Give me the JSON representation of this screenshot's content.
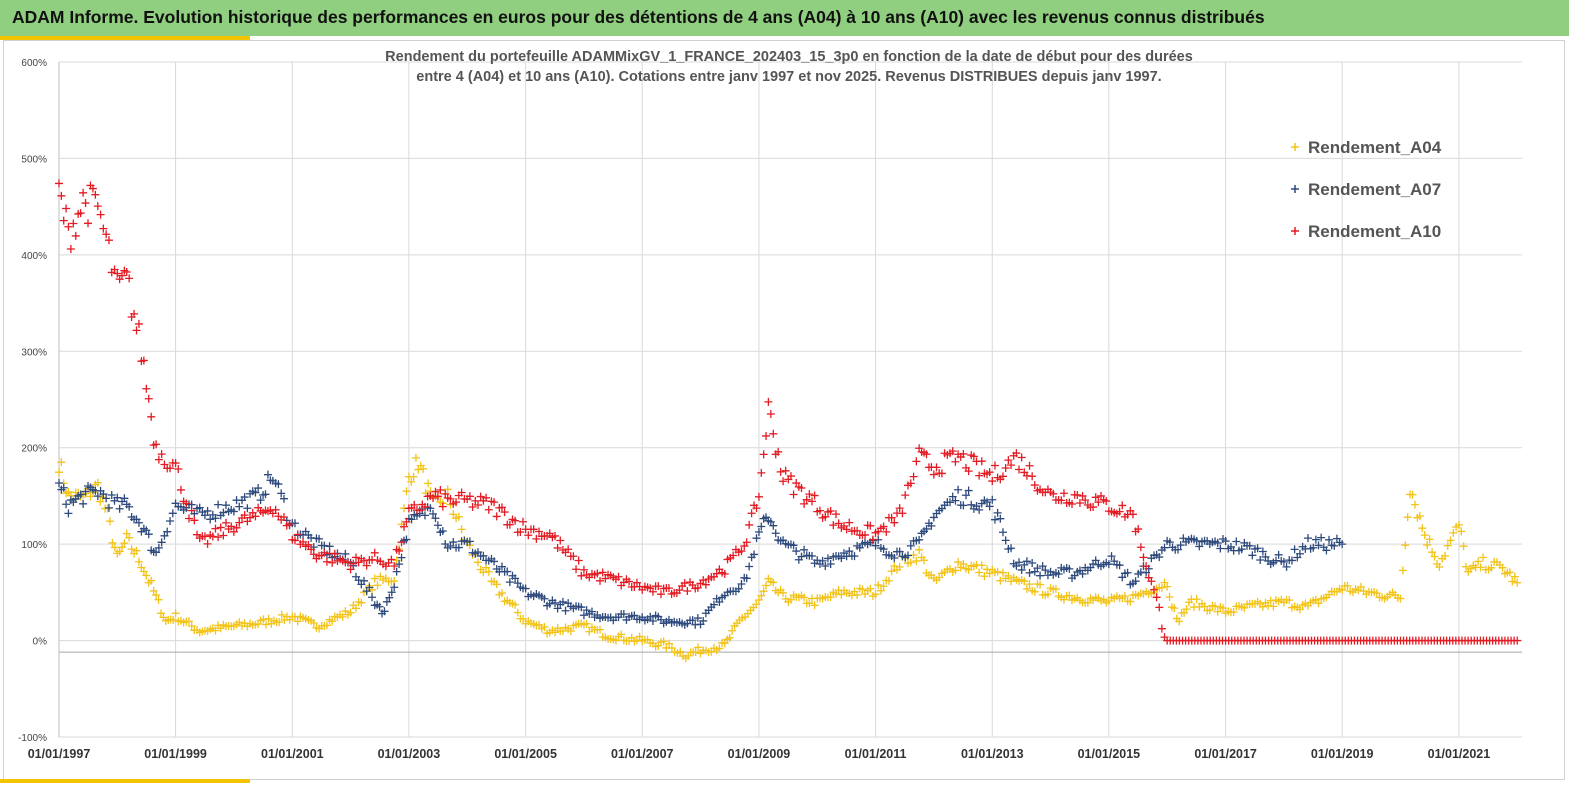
{
  "header": {
    "title": "ADAM Informe. Evolution historique des performances en euros pour des détentions de 4 ans (A04) à 10 ans (A10) avec les revenus connus distribués"
  },
  "colors": {
    "header_bg": "#8fcf7f",
    "accent": "#f3c400",
    "A04": "#f2c318",
    "A07": "#2e4a7d",
    "A10": "#e41b23"
  },
  "chart_data": {
    "type": "scatter",
    "title_line1": "Rendement du portefeuille ADAMMixGV_1_FRANCE_202403_15_3p0  en fonction de la date de début pour des durées",
    "title_line2": "entre 4 (A04)  et 10 ans (A10). Cotations  entre janv 1997 et nov  2025. Revenus DISTRIBUES depuis janv 1997.",
    "x_type": "date",
    "xlim": [
      "1997-01-01",
      "2022-01-31"
    ],
    "ylim": [
      -100,
      600
    ],
    "y_ticks": [
      "600%",
      "500%",
      "400%",
      "300%",
      "200%",
      "100%",
      "0%",
      "-100%"
    ],
    "y_tick_values": [
      600,
      500,
      400,
      300,
      200,
      100,
      0,
      -100
    ],
    "x_ticks": [
      "01/01/1997",
      "01/01/1999",
      "01/01/2001",
      "01/01/2003",
      "01/01/2005",
      "01/01/2007",
      "01/01/2009",
      "01/01/2011",
      "01/01/2013",
      "01/01/2015",
      "01/01/2017",
      "01/01/2019",
      "01/01/2021"
    ],
    "grid": true,
    "legend_position": "top-right",
    "marker": "+",
    "series": [
      {
        "name": "Rendement_A04",
        "key": "A04",
        "points": [
          [
            "1997-01-01",
            185
          ],
          [
            "1997-03-01",
            150
          ],
          [
            "1997-06-01",
            148
          ],
          [
            "1997-09-01",
            160
          ],
          [
            "1997-11-01",
            130
          ],
          [
            "1998-01-01",
            85
          ],
          [
            "1998-03-01",
            105
          ],
          [
            "1998-06-01",
            80
          ],
          [
            "1998-09-01",
            45
          ],
          [
            "1998-11-01",
            20
          ],
          [
            "1999-01-01",
            25
          ],
          [
            "1999-06-01",
            10
          ],
          [
            "2000-01-01",
            15
          ],
          [
            "2000-06-01",
            18
          ],
          [
            "2001-01-01",
            25
          ],
          [
            "2001-06-01",
            15
          ],
          [
            "2002-01-01",
            30
          ],
          [
            "2002-06-01",
            60
          ],
          [
            "2002-10-01",
            65
          ],
          [
            "2003-01-01",
            170
          ],
          [
            "2003-03-01",
            185
          ],
          [
            "2003-06-01",
            140
          ],
          [
            "2003-09-01",
            150
          ],
          [
            "2004-01-01",
            100
          ],
          [
            "2004-06-01",
            60
          ],
          [
            "2005-01-01",
            20
          ],
          [
            "2005-06-01",
            10
          ],
          [
            "2006-01-01",
            15
          ],
          [
            "2006-06-01",
            5
          ],
          [
            "2007-01-01",
            0
          ],
          [
            "2007-06-01",
            -5
          ],
          [
            "2007-10-01",
            -15
          ],
          [
            "2008-01-01",
            -10
          ],
          [
            "2008-06-01",
            -5
          ],
          [
            "2008-09-01",
            20
          ],
          [
            "2009-01-01",
            40
          ],
          [
            "2009-03-01",
            60
          ],
          [
            "2009-06-01",
            45
          ],
          [
            "2010-01-01",
            40
          ],
          [
            "2010-06-01",
            50
          ],
          [
            "2011-01-01",
            50
          ],
          [
            "2011-06-01",
            80
          ],
          [
            "2011-10-01",
            90
          ],
          [
            "2012-01-01",
            60
          ],
          [
            "2012-06-01",
            80
          ],
          [
            "2013-01-01",
            70
          ],
          [
            "2013-06-01",
            60
          ],
          [
            "2014-01-01",
            50
          ],
          [
            "2014-06-01",
            45
          ],
          [
            "2015-01-01",
            40
          ],
          [
            "2015-06-01",
            45
          ],
          [
            "2016-01-01",
            60
          ],
          [
            "2016-03-01",
            20
          ],
          [
            "2016-06-01",
            40
          ],
          [
            "2017-01-01",
            30
          ],
          [
            "2017-06-01",
            35
          ],
          [
            "2018-01-01",
            40
          ],
          [
            "2018-06-01",
            35
          ],
          [
            "2019-01-01",
            55
          ],
          [
            "2019-06-01",
            50
          ],
          [
            "2020-01-01",
            45
          ],
          [
            "2020-03-01",
            160
          ],
          [
            "2020-06-01",
            110
          ],
          [
            "2020-09-01",
            80
          ],
          [
            "2021-01-01",
            120
          ],
          [
            "2021-03-01",
            70
          ],
          [
            "2021-06-01",
            80
          ],
          [
            "2021-10-01",
            75
          ],
          [
            "2022-01-01",
            60
          ]
        ]
      },
      {
        "name": "Rendement_A07",
        "key": "A07",
        "points": [
          [
            "1997-01-01",
            160
          ],
          [
            "1997-03-01",
            140
          ],
          [
            "1997-06-01",
            150
          ],
          [
            "1997-09-01",
            155
          ],
          [
            "1998-01-01",
            140
          ],
          [
            "1998-03-01",
            140
          ],
          [
            "1998-06-01",
            120
          ],
          [
            "1998-09-01",
            90
          ],
          [
            "1999-01-01",
            140
          ],
          [
            "1999-06-01",
            130
          ],
          [
            "2000-01-01",
            140
          ],
          [
            "2000-06-01",
            150
          ],
          [
            "2000-09-01",
            170
          ],
          [
            "2001-01-01",
            120
          ],
          [
            "2001-06-01",
            100
          ],
          [
            "2002-01-01",
            80
          ],
          [
            "2002-06-01",
            40
          ],
          [
            "2002-08-01",
            30
          ],
          [
            "2002-10-01",
            60
          ],
          [
            "2003-01-01",
            120
          ],
          [
            "2003-06-01",
            140
          ],
          [
            "2003-09-01",
            100
          ],
          [
            "2004-01-01",
            100
          ],
          [
            "2004-06-01",
            80
          ],
          [
            "2005-01-01",
            50
          ],
          [
            "2005-06-01",
            40
          ],
          [
            "2006-01-01",
            30
          ],
          [
            "2006-06-01",
            25
          ],
          [
            "2007-01-01",
            25
          ],
          [
            "2007-06-01",
            20
          ],
          [
            "2008-01-01",
            20
          ],
          [
            "2008-06-01",
            50
          ],
          [
            "2008-10-01",
            60
          ],
          [
            "2009-01-01",
            110
          ],
          [
            "2009-03-01",
            130
          ],
          [
            "2009-06-01",
            100
          ],
          [
            "2010-01-01",
            80
          ],
          [
            "2010-06-01",
            90
          ],
          [
            "2011-01-01",
            100
          ],
          [
            "2011-06-01",
            90
          ],
          [
            "2011-10-01",
            100
          ],
          [
            "2012-01-01",
            130
          ],
          [
            "2012-06-01",
            150
          ],
          [
            "2013-01-01",
            140
          ],
          [
            "2013-06-01",
            80
          ],
          [
            "2014-01-01",
            70
          ],
          [
            "2014-06-01",
            70
          ],
          [
            "2015-01-01",
            85
          ],
          [
            "2015-06-01",
            60
          ],
          [
            "2016-01-01",
            100
          ],
          [
            "2016-06-01",
            100
          ],
          [
            "2017-01-01",
            100
          ],
          [
            "2017-06-01",
            95
          ],
          [
            "2018-01-01",
            80
          ],
          [
            "2018-06-01",
            100
          ],
          [
            "2019-01-01",
            100
          ]
        ]
      },
      {
        "name": "Rendement_A10",
        "key": "A10",
        "points": [
          [
            "1997-01-01",
            465
          ],
          [
            "1997-03-01",
            420
          ],
          [
            "1997-06-01",
            455
          ],
          [
            "1997-09-01",
            450
          ],
          [
            "1998-01-01",
            365
          ],
          [
            "1998-03-01",
            375
          ],
          [
            "1998-06-01",
            300
          ],
          [
            "1998-09-01",
            200
          ],
          [
            "1999-01-01",
            180
          ],
          [
            "1999-06-01",
            100
          ],
          [
            "2000-01-01",
            120
          ],
          [
            "2000-06-01",
            130
          ],
          [
            "2000-09-01",
            140
          ],
          [
            "2001-01-01",
            110
          ],
          [
            "2001-06-01",
            90
          ],
          [
            "2002-01-01",
            80
          ],
          [
            "2002-06-01",
            85
          ],
          [
            "2002-10-01",
            80
          ],
          [
            "2003-01-01",
            130
          ],
          [
            "2003-06-01",
            150
          ],
          [
            "2003-09-01",
            145
          ],
          [
            "2004-01-01",
            145
          ],
          [
            "2004-06-01",
            140
          ],
          [
            "2005-01-01",
            115
          ],
          [
            "2005-06-01",
            110
          ],
          [
            "2006-01-01",
            70
          ],
          [
            "2006-06-01",
            65
          ],
          [
            "2007-01-01",
            55
          ],
          [
            "2007-06-01",
            50
          ],
          [
            "2008-01-01",
            60
          ],
          [
            "2008-06-01",
            75
          ],
          [
            "2008-10-01",
            100
          ],
          [
            "2009-01-01",
            150
          ],
          [
            "2009-03-01",
            240
          ],
          [
            "2009-06-01",
            170
          ],
          [
            "2010-01-01",
            140
          ],
          [
            "2010-06-01",
            120
          ],
          [
            "2011-01-01",
            110
          ],
          [
            "2011-06-01",
            130
          ],
          [
            "2011-10-01",
            190
          ],
          [
            "2012-01-01",
            180
          ],
          [
            "2012-06-01",
            190
          ],
          [
            "2013-01-01",
            170
          ],
          [
            "2013-06-01",
            190
          ],
          [
            "2014-01-01",
            150
          ],
          [
            "2014-06-01",
            150
          ],
          [
            "2015-01-01",
            140
          ],
          [
            "2015-06-01",
            130
          ],
          [
            "2016-01-01",
            0
          ],
          [
            "2017-01-01",
            0
          ],
          [
            "2018-01-01",
            0
          ],
          [
            "2019-01-01",
            0
          ],
          [
            "2020-01-01",
            0
          ],
          [
            "2021-01-01",
            0
          ],
          [
            "2022-01-01",
            0
          ]
        ]
      }
    ]
  }
}
